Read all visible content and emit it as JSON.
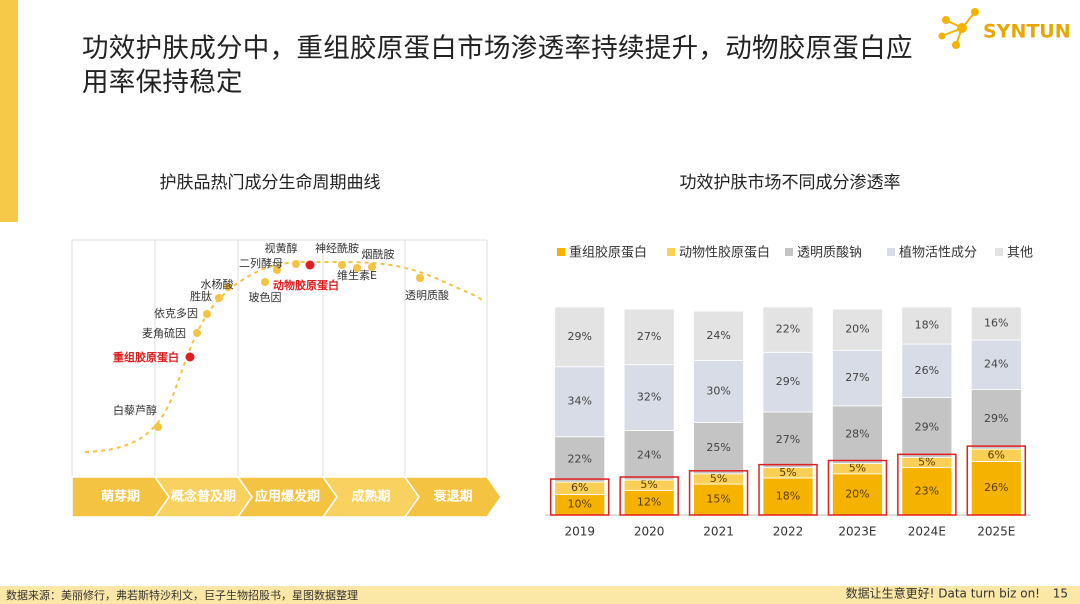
{
  "header": {
    "title": "功效护肤成分中，重组胶原蛋白市场渗透率持续提升，动物胶原蛋白应用率保持稳定",
    "logo": "SYNTUN"
  },
  "lifecycle": {
    "title": "护肤品热门成分生命周期曲线",
    "stages": [
      "萌芽期",
      "概念普及期",
      "应用爆发期",
      "成熟期",
      "衰退期"
    ],
    "ingredients": [
      {
        "label": "白藜芦醇",
        "color": "#f5c342"
      },
      {
        "label": "重组胶原蛋白",
        "color": "#e01e1e"
      },
      {
        "label": "麦角硫因",
        "color": "#f5c342"
      },
      {
        "label": "依克多因",
        "color": "#f5c342"
      },
      {
        "label": "胜肽",
        "color": "#f5c342"
      },
      {
        "label": "水杨酸",
        "color": "#f5c342"
      },
      {
        "label": "二列酵母",
        "color": "#f5c342"
      },
      {
        "label": "视黄醇",
        "color": "#f5c342"
      },
      {
        "label": "玻色因",
        "color": "#f5c342"
      },
      {
        "label": "动物胶原蛋白",
        "color": "#e01e1e"
      },
      {
        "label": "神经酰胺",
        "color": "#f5c342"
      },
      {
        "label": "烟酰胺",
        "color": "#f5c342"
      },
      {
        "label": "维生素E",
        "color": "#f5c342"
      },
      {
        "label": "透明质酸",
        "color": "#f5c342"
      }
    ]
  },
  "chart_data": {
    "type": "bar",
    "stacked": true,
    "title": "功效护肤市场不同成分渗透率",
    "categories": [
      "2019",
      "2020",
      "2021",
      "2022",
      "2023E",
      "2024E",
      "2025E"
    ],
    "series": [
      {
        "name": "重组胶原蛋白",
        "color": "#f5b300",
        "values": [
          10,
          12,
          15,
          18,
          20,
          23,
          26
        ],
        "value_labels": [
          "10%",
          "12%",
          "15%",
          "18%",
          "20%",
          "23%",
          "26%"
        ]
      },
      {
        "name": "动物性胶原蛋白",
        "color": "#f9cf55",
        "values": [
          6,
          5,
          5,
          5,
          5,
          5,
          6
        ],
        "value_labels": [
          "6%",
          "5%",
          "5%",
          "5%",
          "5%",
          "5%",
          "6%"
        ]
      },
      {
        "name": "透明质酸钠",
        "color": "#c4c4c4",
        "values": [
          22,
          24,
          25,
          27,
          28,
          29,
          29
        ],
        "value_labels": [
          "22%",
          "24%",
          "25%",
          "27%",
          "28%",
          "29%",
          "29%"
        ]
      },
      {
        "name": "植物活性成分",
        "color": "#d8dce6",
        "values": [
          34,
          32,
          30,
          29,
          27,
          26,
          24
        ],
        "value_labels": [
          "34%",
          "32%",
          "30%",
          "29%",
          "27%",
          "26%",
          "24%"
        ]
      },
      {
        "name": "其他",
        "color": "#e3e3e3",
        "values": [
          29,
          27,
          24,
          22,
          20,
          18,
          16
        ],
        "value_labels": [
          "29%",
          "27%",
          "24%",
          "22%",
          "20%",
          "18%",
          "16%"
        ]
      }
    ]
  },
  "footer": {
    "source": "数据来源：美丽修行，弗若斯特沙利文，巨子生物招股书，星图数据整理",
    "slogan": "数据让生意更好! Data turn biz on!",
    "page": 15
  }
}
